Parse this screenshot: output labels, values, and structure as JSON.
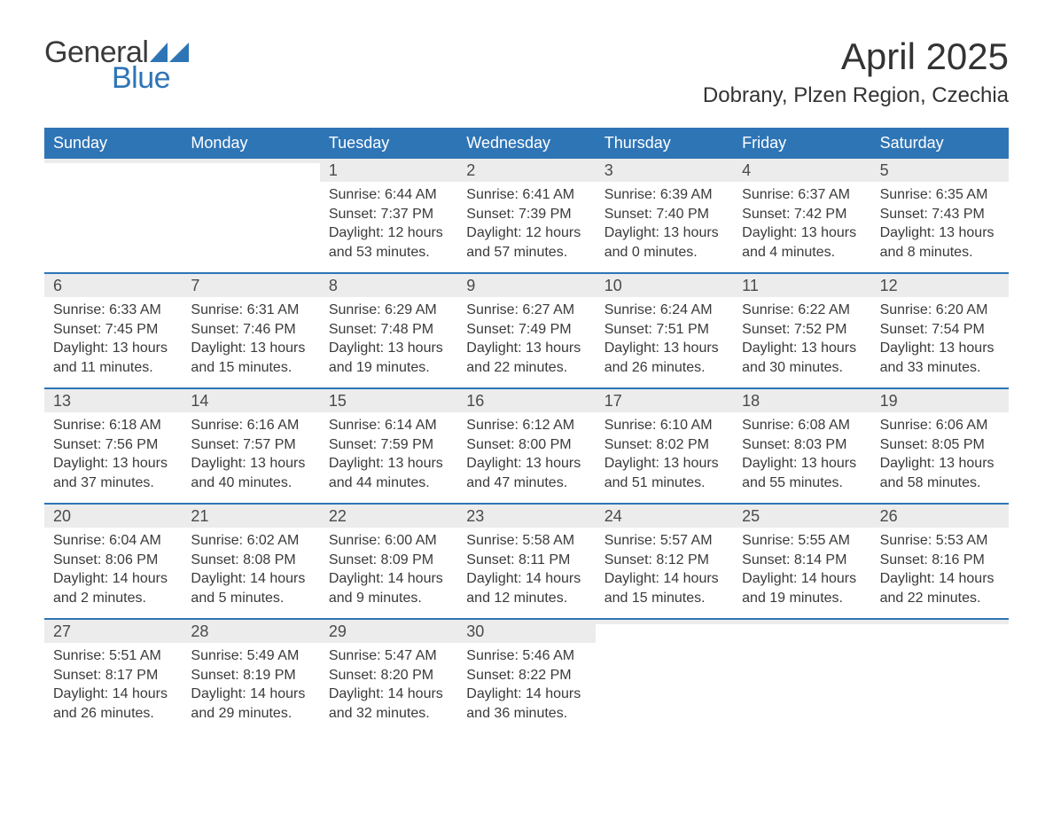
{
  "brand": {
    "general": "General",
    "blue": "Blue"
  },
  "title": "April 2025",
  "location": "Dobrany, Plzen Region, Czechia",
  "colors": {
    "header_bg": "#2e75b6",
    "header_text": "#ffffff",
    "date_bg": "#ececec",
    "body_text": "#3a3a3a",
    "week_rule": "#2e75b6",
    "logo_blue": "#2e75b6"
  },
  "day_names": [
    "Sunday",
    "Monday",
    "Tuesday",
    "Wednesday",
    "Thursday",
    "Friday",
    "Saturday"
  ],
  "weeks": [
    [
      {
        "date": "",
        "body": ""
      },
      {
        "date": "",
        "body": ""
      },
      {
        "date": "1",
        "body": "Sunrise: 6:44 AM\nSunset: 7:37 PM\nDaylight: 12 hours and 53 minutes."
      },
      {
        "date": "2",
        "body": "Sunrise: 6:41 AM\nSunset: 7:39 PM\nDaylight: 12 hours and 57 minutes."
      },
      {
        "date": "3",
        "body": "Sunrise: 6:39 AM\nSunset: 7:40 PM\nDaylight: 13 hours and 0 minutes."
      },
      {
        "date": "4",
        "body": "Sunrise: 6:37 AM\nSunset: 7:42 PM\nDaylight: 13 hours and 4 minutes."
      },
      {
        "date": "5",
        "body": "Sunrise: 6:35 AM\nSunset: 7:43 PM\nDaylight: 13 hours and 8 minutes."
      }
    ],
    [
      {
        "date": "6",
        "body": "Sunrise: 6:33 AM\nSunset: 7:45 PM\nDaylight: 13 hours and 11 minutes."
      },
      {
        "date": "7",
        "body": "Sunrise: 6:31 AM\nSunset: 7:46 PM\nDaylight: 13 hours and 15 minutes."
      },
      {
        "date": "8",
        "body": "Sunrise: 6:29 AM\nSunset: 7:48 PM\nDaylight: 13 hours and 19 minutes."
      },
      {
        "date": "9",
        "body": "Sunrise: 6:27 AM\nSunset: 7:49 PM\nDaylight: 13 hours and 22 minutes."
      },
      {
        "date": "10",
        "body": "Sunrise: 6:24 AM\nSunset: 7:51 PM\nDaylight: 13 hours and 26 minutes."
      },
      {
        "date": "11",
        "body": "Sunrise: 6:22 AM\nSunset: 7:52 PM\nDaylight: 13 hours and 30 minutes."
      },
      {
        "date": "12",
        "body": "Sunrise: 6:20 AM\nSunset: 7:54 PM\nDaylight: 13 hours and 33 minutes."
      }
    ],
    [
      {
        "date": "13",
        "body": "Sunrise: 6:18 AM\nSunset: 7:56 PM\nDaylight: 13 hours and 37 minutes."
      },
      {
        "date": "14",
        "body": "Sunrise: 6:16 AM\nSunset: 7:57 PM\nDaylight: 13 hours and 40 minutes."
      },
      {
        "date": "15",
        "body": "Sunrise: 6:14 AM\nSunset: 7:59 PM\nDaylight: 13 hours and 44 minutes."
      },
      {
        "date": "16",
        "body": "Sunrise: 6:12 AM\nSunset: 8:00 PM\nDaylight: 13 hours and 47 minutes."
      },
      {
        "date": "17",
        "body": "Sunrise: 6:10 AM\nSunset: 8:02 PM\nDaylight: 13 hours and 51 minutes."
      },
      {
        "date": "18",
        "body": "Sunrise: 6:08 AM\nSunset: 8:03 PM\nDaylight: 13 hours and 55 minutes."
      },
      {
        "date": "19",
        "body": "Sunrise: 6:06 AM\nSunset: 8:05 PM\nDaylight: 13 hours and 58 minutes."
      }
    ],
    [
      {
        "date": "20",
        "body": "Sunrise: 6:04 AM\nSunset: 8:06 PM\nDaylight: 14 hours and 2 minutes."
      },
      {
        "date": "21",
        "body": "Sunrise: 6:02 AM\nSunset: 8:08 PM\nDaylight: 14 hours and 5 minutes."
      },
      {
        "date": "22",
        "body": "Sunrise: 6:00 AM\nSunset: 8:09 PM\nDaylight: 14 hours and 9 minutes."
      },
      {
        "date": "23",
        "body": "Sunrise: 5:58 AM\nSunset: 8:11 PM\nDaylight: 14 hours and 12 minutes."
      },
      {
        "date": "24",
        "body": "Sunrise: 5:57 AM\nSunset: 8:12 PM\nDaylight: 14 hours and 15 minutes."
      },
      {
        "date": "25",
        "body": "Sunrise: 5:55 AM\nSunset: 8:14 PM\nDaylight: 14 hours and 19 minutes."
      },
      {
        "date": "26",
        "body": "Sunrise: 5:53 AM\nSunset: 8:16 PM\nDaylight: 14 hours and 22 minutes."
      }
    ],
    [
      {
        "date": "27",
        "body": "Sunrise: 5:51 AM\nSunset: 8:17 PM\nDaylight: 14 hours and 26 minutes."
      },
      {
        "date": "28",
        "body": "Sunrise: 5:49 AM\nSunset: 8:19 PM\nDaylight: 14 hours and 29 minutes."
      },
      {
        "date": "29",
        "body": "Sunrise: 5:47 AM\nSunset: 8:20 PM\nDaylight: 14 hours and 32 minutes."
      },
      {
        "date": "30",
        "body": "Sunrise: 5:46 AM\nSunset: 8:22 PM\nDaylight: 14 hours and 36 minutes."
      },
      {
        "date": "",
        "body": ""
      },
      {
        "date": "",
        "body": ""
      },
      {
        "date": "",
        "body": ""
      }
    ]
  ]
}
